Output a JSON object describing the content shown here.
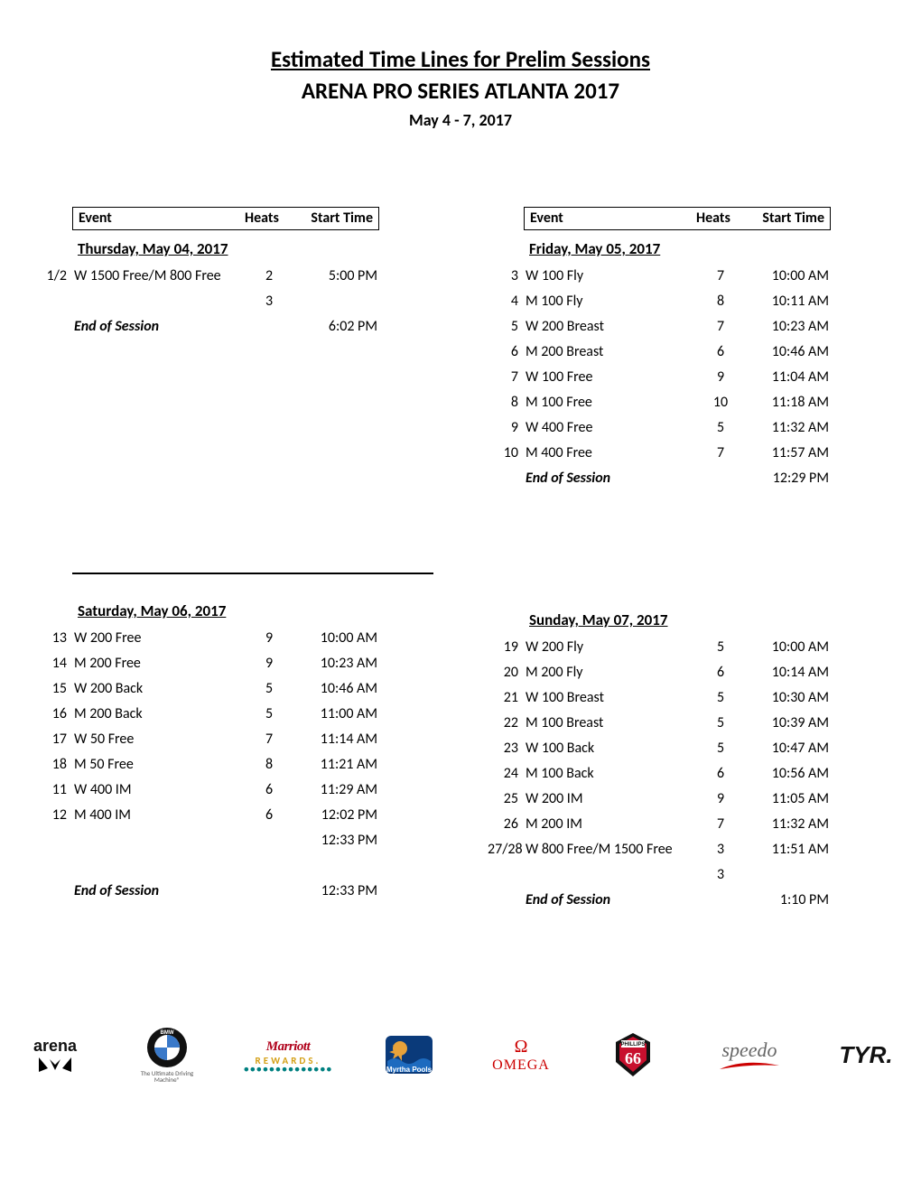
{
  "title": "Estimated Time Lines for Prelim Sessions",
  "subtitle": "ARENA PRO SERIES ATLANTA 2017",
  "dates": "May 4 - 7, 2017",
  "headers": {
    "event": "Event",
    "heats": "Heats",
    "start": "Start Time"
  },
  "end_label": "End of Session",
  "sessions": [
    {
      "day": "Thursday, May 04, 2017",
      "show_header": true,
      "show_rule": false,
      "rows": [
        {
          "num": "1/2",
          "name": "W 1500 Free/M 800 Free",
          "heats": "2",
          "time": "5:00 PM"
        },
        {
          "num": "",
          "name": "",
          "heats": "3",
          "time": ""
        }
      ],
      "end_time": "6:02 PM"
    },
    {
      "day": "Friday, May 05, 2017",
      "show_header": true,
      "show_rule": false,
      "rows": [
        {
          "num": "3",
          "name": "W 100 Fly",
          "heats": "7",
          "time": "10:00 AM"
        },
        {
          "num": "4",
          "name": "M 100 Fly",
          "heats": "8",
          "time": "10:11 AM"
        },
        {
          "num": "5",
          "name": "W 200 Breast",
          "heats": "7",
          "time": "10:23 AM"
        },
        {
          "num": "6",
          "name": "M 200 Breast",
          "heats": "6",
          "time": "10:46 AM"
        },
        {
          "num": "7",
          "name": "W 100 Free",
          "heats": "9",
          "time": "11:04 AM"
        },
        {
          "num": "8",
          "name": "M 100 Free",
          "heats": "10",
          "time": "11:18 AM"
        },
        {
          "num": "9",
          "name": "W 400 Free",
          "heats": "5",
          "time": "11:32 AM"
        },
        {
          "num": "10",
          "name": "M 400 Free",
          "heats": "7",
          "time": "11:57 AM"
        }
      ],
      "end_time": "12:29 PM"
    },
    {
      "day": "Saturday, May 06, 2017",
      "show_header": false,
      "show_rule": true,
      "rows": [
        {
          "num": "13",
          "name": "W 200 Free",
          "heats": "9",
          "time": "10:00 AM"
        },
        {
          "num": "14",
          "name": "M 200 Free",
          "heats": "9",
          "time": "10:23 AM"
        },
        {
          "num": "15",
          "name": "W 200 Back",
          "heats": "5",
          "time": "10:46 AM"
        },
        {
          "num": "16",
          "name": "M 200 Back",
          "heats": "5",
          "time": "11:00 AM"
        },
        {
          "num": "17",
          "name": "W 50 Free",
          "heats": "7",
          "time": "11:14 AM"
        },
        {
          "num": "18",
          "name": "M 50 Free",
          "heats": "8",
          "time": "11:21 AM"
        },
        {
          "num": "11",
          "name": "W 400 IM",
          "heats": "6",
          "time": "11:29 AM"
        },
        {
          "num": "12",
          "name": "M 400 IM",
          "heats": "6",
          "time": "12:02 PM"
        },
        {
          "num": "",
          "name": "",
          "heats": "",
          "time": "12:33 PM"
        },
        {
          "num": "",
          "name": "",
          "heats": "",
          "time": ""
        }
      ],
      "end_time": "12:33 PM"
    },
    {
      "day": "Sunday, May 07, 2017",
      "show_header": false,
      "show_rule": false,
      "rows": [
        {
          "num": "19",
          "name": "W 200 Fly",
          "heats": "5",
          "time": "10:00 AM"
        },
        {
          "num": "20",
          "name": "M 200 Fly",
          "heats": "6",
          "time": "10:14 AM"
        },
        {
          "num": "21",
          "name": "W 100 Breast",
          "heats": "5",
          "time": "10:30 AM"
        },
        {
          "num": "22",
          "name": "M 100 Breast",
          "heats": "5",
          "time": "10:39 AM"
        },
        {
          "num": "23",
          "name": "W 100 Back",
          "heats": "5",
          "time": "10:47 AM"
        },
        {
          "num": "24",
          "name": "M 100 Back",
          "heats": "6",
          "time": "10:56 AM"
        },
        {
          "num": "25",
          "name": "W 200 IM",
          "heats": "9",
          "time": "11:05 AM"
        },
        {
          "num": "26",
          "name": "M 200 IM",
          "heats": "7",
          "time": "11:32 AM"
        },
        {
          "num": "27/28",
          "name": "W 800 Free/M 1500 Free",
          "heats": "3",
          "time": "11:51 AM"
        },
        {
          "num": "",
          "name": "",
          "heats": "3",
          "time": ""
        }
      ],
      "end_time": "1:10 PM"
    }
  ],
  "logos": [
    {
      "id": "arena",
      "label": "arena"
    },
    {
      "id": "bmw",
      "label": "BMW",
      "tag": "The Ultimate\nDriving Machine®"
    },
    {
      "id": "marriott",
      "label1": "Marriott",
      "label2": "REWARDS."
    },
    {
      "id": "myrtha",
      "label": "Myrtha Pools"
    },
    {
      "id": "omega",
      "label": "OMEGA"
    },
    {
      "id": "phillips",
      "label": "PHILLIPS 66"
    },
    {
      "id": "speedo",
      "label": "speedo"
    },
    {
      "id": "tyr",
      "label": "TYR."
    }
  ]
}
